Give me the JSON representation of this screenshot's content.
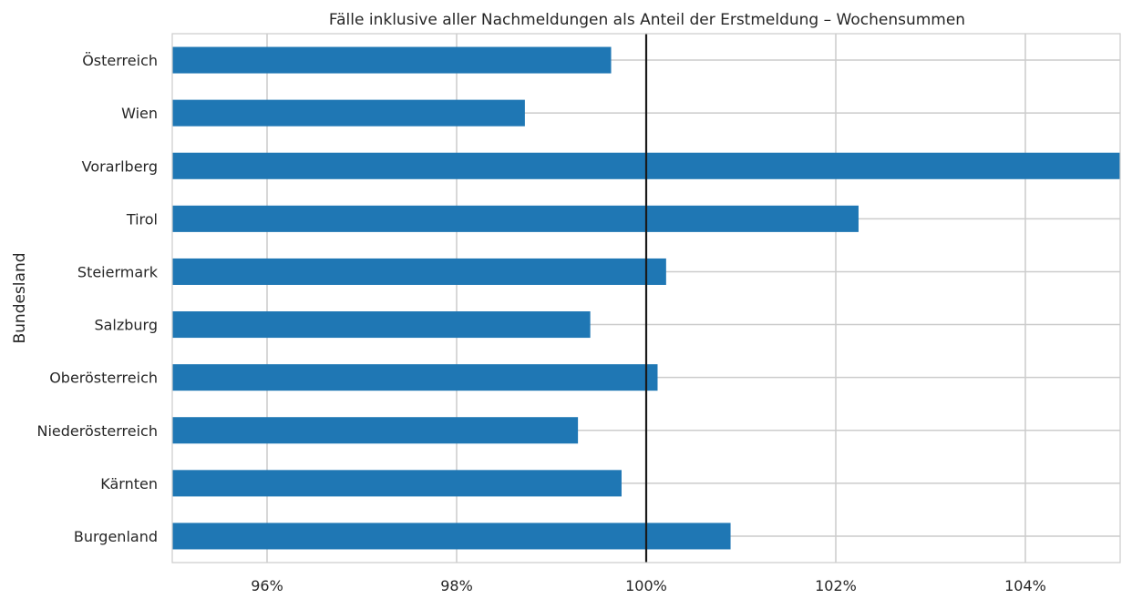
{
  "chart_data": {
    "type": "bar",
    "orientation": "horizontal",
    "title": "Fälle inklusive aller Nachmeldungen als Anteil der Erstmeldung – Wochensummen",
    "xlabel": "",
    "ylabel": "Bundesland",
    "categories": [
      "Österreich",
      "Wien",
      "Vorarlberg",
      "Tirol",
      "Steiermark",
      "Salzburg",
      "Oberösterreich",
      "Niederösterreich",
      "Kärnten",
      "Burgenland"
    ],
    "values": [
      99.63,
      98.72,
      105.3,
      102.24,
      100.21,
      99.41,
      100.12,
      99.28,
      99.74,
      100.89
    ],
    "xlim": [
      95.0,
      105.0
    ],
    "x_ticks": [
      96,
      98,
      100,
      102,
      104
    ],
    "x_tick_labels": [
      "96%",
      "98%",
      "100%",
      "102%",
      "104%"
    ],
    "reference_line": 100,
    "grid": true,
    "colors": {
      "bar": "#1f77b4",
      "reference_line": "#1a1a1a",
      "grid": "#cccccc",
      "text": "#262626"
    }
  }
}
